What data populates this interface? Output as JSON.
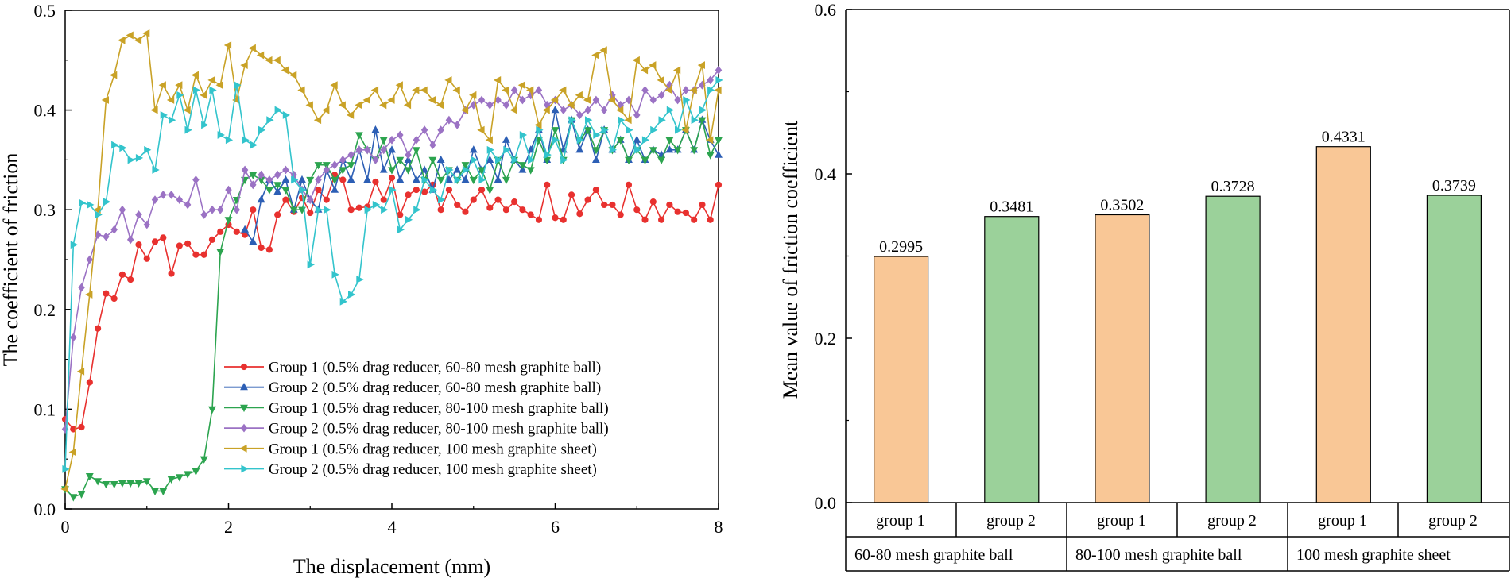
{
  "chart_data": [
    {
      "type": "line",
      "title": "",
      "xlabel": "The displacement (mm)",
      "ylabel": "The coefficient of friction",
      "xlim": [
        0,
        8
      ],
      "ylim": [
        0,
        0.5
      ],
      "xticks": [
        "0",
        "2",
        "4",
        "6",
        "8"
      ],
      "yticks": [
        "0.0",
        "0.1",
        "0.2",
        "0.3",
        "0.4",
        "0.5"
      ],
      "legend_position": "bottom-center",
      "series": [
        {
          "name": "Group 1 (0.5% drag reducer, 60-80 mesh graphite ball)",
          "color": "#e8312f",
          "marker": "circle",
          "x": [
            0,
            0.1,
            0.2,
            0.3,
            0.4,
            0.5,
            0.6,
            0.7,
            0.8,
            0.9,
            1.0,
            1.1,
            1.2,
            1.3,
            1.4,
            1.5,
            1.6,
            1.7,
            1.8,
            1.9,
            2.0,
            2.1,
            2.2,
            2.3,
            2.4,
            2.5,
            2.6,
            2.7,
            2.8,
            2.9,
            3.0,
            3.1,
            3.2,
            3.3,
            3.4,
            3.5,
            3.6,
            3.7,
            3.8,
            3.9,
            4.0,
            4.1,
            4.2,
            4.3,
            4.4,
            4.5,
            4.6,
            4.7,
            4.8,
            4.9,
            5.0,
            5.1,
            5.2,
            5.3,
            5.4,
            5.5,
            5.6,
            5.7,
            5.8,
            5.9,
            6.0,
            6.1,
            6.2,
            6.3,
            6.4,
            6.5,
            6.6,
            6.7,
            6.8,
            6.9,
            7.0,
            7.1,
            7.2,
            7.3,
            7.4,
            7.5,
            7.6,
            7.7,
            7.8,
            7.9,
            8.0
          ],
          "values": [
            0.09,
            0.08,
            0.082,
            0.127,
            0.181,
            0.216,
            0.211,
            0.235,
            0.23,
            0.265,
            0.251,
            0.268,
            0.272,
            0.236,
            0.264,
            0.266,
            0.255,
            0.255,
            0.27,
            0.278,
            0.285,
            0.278,
            0.275,
            0.3,
            0.262,
            0.26,
            0.295,
            0.31,
            0.298,
            0.312,
            0.297,
            0.32,
            0.31,
            0.335,
            0.33,
            0.3,
            0.302,
            0.303,
            0.328,
            0.31,
            0.332,
            0.295,
            0.315,
            0.32,
            0.318,
            0.325,
            0.3,
            0.32,
            0.305,
            0.298,
            0.31,
            0.32,
            0.302,
            0.31,
            0.3,
            0.308,
            0.3,
            0.295,
            0.29,
            0.325,
            0.292,
            0.29,
            0.315,
            0.296,
            0.31,
            0.32,
            0.305,
            0.305,
            0.295,
            0.325,
            0.3,
            0.29,
            0.308,
            0.29,
            0.305,
            0.298,
            0.297,
            0.29,
            0.305,
            0.29,
            0.325
          ]
        },
        {
          "name": "Group 2 (0.5% drag reducer, 60-80 mesh graphite ball)",
          "color": "#2d5fb5",
          "marker": "triangle-up",
          "x": [
            2.2,
            2.3,
            2.4,
            2.5,
            2.6,
            2.7,
            2.8,
            2.9,
            3.0,
            3.1,
            3.2,
            3.3,
            3.4,
            3.5,
            3.6,
            3.7,
            3.8,
            3.9,
            4.0,
            4.1,
            4.2,
            4.3,
            4.4,
            4.5,
            4.6,
            4.7,
            4.8,
            4.9,
            5.0,
            5.1,
            5.2,
            5.3,
            5.4,
            5.5,
            5.6,
            5.7,
            5.8,
            5.9,
            6.0,
            6.1,
            6.2,
            6.3,
            6.4,
            6.5,
            6.6,
            6.7,
            6.8,
            6.9,
            7.0,
            7.1,
            7.2,
            7.3,
            7.4,
            7.5,
            7.6,
            7.7,
            7.8,
            7.9,
            8.0
          ],
          "values": [
            0.28,
            0.268,
            0.31,
            0.33,
            0.318,
            0.33,
            0.3,
            0.33,
            0.31,
            0.3,
            0.34,
            0.32,
            0.35,
            0.33,
            0.36,
            0.33,
            0.38,
            0.34,
            0.36,
            0.33,
            0.35,
            0.33,
            0.34,
            0.32,
            0.35,
            0.33,
            0.34,
            0.33,
            0.36,
            0.34,
            0.35,
            0.33,
            0.37,
            0.35,
            0.34,
            0.36,
            0.38,
            0.35,
            0.4,
            0.36,
            0.39,
            0.36,
            0.38,
            0.35,
            0.38,
            0.36,
            0.37,
            0.35,
            0.37,
            0.35,
            0.36,
            0.355,
            0.36,
            0.36,
            0.38,
            0.36,
            0.39,
            0.37,
            0.355
          ]
        },
        {
          "name": "Group 1 (0.5% drag reducer, 80-100 mesh graphite ball)",
          "color": "#2ca44f",
          "marker": "triangle-down",
          "x": [
            0,
            0.1,
            0.2,
            0.3,
            0.4,
            0.5,
            0.6,
            0.7,
            0.8,
            0.9,
            1.0,
            1.1,
            1.2,
            1.3,
            1.4,
            1.5,
            1.6,
            1.7,
            1.8,
            1.9,
            2.0,
            2.1,
            2.2,
            2.3,
            2.4,
            2.5,
            2.6,
            2.7,
            2.8,
            2.9,
            3.0,
            3.1,
            3.2,
            3.3,
            3.4,
            3.5,
            3.6,
            3.7,
            3.8,
            3.9,
            4.0,
            4.1,
            4.2,
            4.3,
            4.4,
            4.5,
            4.6,
            4.7,
            4.8,
            4.9,
            5.0,
            5.1,
            5.2,
            5.3,
            5.4,
            5.5,
            5.6,
            5.7,
            5.8,
            5.9,
            6.0,
            6.1,
            6.2,
            6.3,
            6.4,
            6.5,
            6.6,
            6.7,
            6.8,
            6.9,
            7.0,
            7.1,
            7.2,
            7.3,
            7.4,
            7.5,
            7.6,
            7.7,
            7.8,
            7.9,
            8.0
          ],
          "values": [
            0.02,
            0.012,
            0.015,
            0.033,
            0.028,
            0.025,
            0.025,
            0.026,
            0.026,
            0.026,
            0.028,
            0.018,
            0.018,
            0.03,
            0.032,
            0.035,
            0.038,
            0.05,
            0.1,
            0.258,
            0.29,
            0.31,
            0.33,
            0.335,
            0.33,
            0.32,
            0.325,
            0.32,
            0.3,
            0.3,
            0.33,
            0.345,
            0.345,
            0.33,
            0.34,
            0.345,
            0.375,
            0.36,
            0.35,
            0.37,
            0.34,
            0.35,
            0.34,
            0.36,
            0.33,
            0.35,
            0.33,
            0.34,
            0.33,
            0.345,
            0.33,
            0.34,
            0.32,
            0.35,
            0.33,
            0.35,
            0.345,
            0.34,
            0.37,
            0.35,
            0.38,
            0.35,
            0.39,
            0.37,
            0.38,
            0.36,
            0.38,
            0.36,
            0.37,
            0.35,
            0.36,
            0.35,
            0.36,
            0.35,
            0.37,
            0.36,
            0.38,
            0.36,
            0.39,
            0.355,
            0.37
          ]
        },
        {
          "name": "Group 2 (0.5% drag reducer, 80-100 mesh graphite ball)",
          "color": "#9b72c4",
          "marker": "diamond",
          "x": [
            0,
            0.1,
            0.2,
            0.3,
            0.4,
            0.5,
            0.6,
            0.7,
            0.8,
            0.9,
            1.0,
            1.1,
            1.2,
            1.3,
            1.4,
            1.5,
            1.6,
            1.7,
            1.8,
            1.9,
            2.0,
            2.1,
            2.2,
            2.3,
            2.4,
            2.5,
            2.6,
            2.7,
            2.8,
            2.9,
            3.0,
            3.1,
            3.2,
            3.3,
            3.4,
            3.5,
            3.6,
            3.7,
            3.8,
            3.9,
            4.0,
            4.1,
            4.2,
            4.3,
            4.4,
            4.5,
            4.6,
            4.7,
            4.8,
            4.9,
            5.0,
            5.1,
            5.2,
            5.3,
            5.4,
            5.5,
            5.6,
            5.7,
            5.8,
            5.9,
            6.0,
            6.1,
            6.2,
            6.3,
            6.4,
            6.5,
            6.6,
            6.7,
            6.8,
            6.9,
            7.0,
            7.1,
            7.2,
            7.3,
            7.4,
            7.5,
            7.6,
            7.7,
            7.8,
            7.9,
            8.0
          ],
          "values": [
            0.08,
            0.172,
            0.222,
            0.25,
            0.275,
            0.273,
            0.28,
            0.3,
            0.27,
            0.295,
            0.285,
            0.31,
            0.315,
            0.315,
            0.31,
            0.305,
            0.33,
            0.295,
            0.3,
            0.3,
            0.32,
            0.3,
            0.34,
            0.325,
            0.335,
            0.33,
            0.335,
            0.34,
            0.335,
            0.32,
            0.31,
            0.33,
            0.34,
            0.345,
            0.35,
            0.355,
            0.36,
            0.36,
            0.35,
            0.36,
            0.37,
            0.375,
            0.355,
            0.37,
            0.38,
            0.365,
            0.38,
            0.39,
            0.385,
            0.4,
            0.405,
            0.41,
            0.405,
            0.41,
            0.405,
            0.42,
            0.41,
            0.415,
            0.42,
            0.405,
            0.41,
            0.4,
            0.405,
            0.395,
            0.4,
            0.41,
            0.4,
            0.415,
            0.405,
            0.41,
            0.395,
            0.42,
            0.41,
            0.415,
            0.425,
            0.41,
            0.42,
            0.42,
            0.425,
            0.43,
            0.44
          ]
        },
        {
          "name": "Group 1 (0.5% drag reducer, 100 mesh graphite sheet)",
          "color": "#c9a227",
          "marker": "triangle-left",
          "x": [
            0,
            0.1,
            0.2,
            0.3,
            0.4,
            0.5,
            0.6,
            0.7,
            0.8,
            0.9,
            1.0,
            1.1,
            1.2,
            1.3,
            1.4,
            1.5,
            1.6,
            1.7,
            1.8,
            1.9,
            2.0,
            2.1,
            2.2,
            2.3,
            2.4,
            2.5,
            2.6,
            2.7,
            2.8,
            2.9,
            3.0,
            3.1,
            3.2,
            3.3,
            3.4,
            3.5,
            3.6,
            3.7,
            3.8,
            3.9,
            4.0,
            4.1,
            4.2,
            4.3,
            4.4,
            4.5,
            4.6,
            4.7,
            4.8,
            4.9,
            5.0,
            5.1,
            5.2,
            5.3,
            5.4,
            5.5,
            5.6,
            5.7,
            5.8,
            5.9,
            6.0,
            6.1,
            6.2,
            6.3,
            6.4,
            6.5,
            6.6,
            6.7,
            6.8,
            6.9,
            7.0,
            7.1,
            7.2,
            7.3,
            7.4,
            7.5,
            7.6,
            7.7,
            7.8,
            7.9,
            8.0
          ],
          "values": [
            0.02,
            0.057,
            0.138,
            0.215,
            0.3,
            0.41,
            0.435,
            0.47,
            0.475,
            0.47,
            0.477,
            0.4,
            0.425,
            0.41,
            0.425,
            0.4,
            0.435,
            0.415,
            0.43,
            0.425,
            0.465,
            0.41,
            0.445,
            0.462,
            0.455,
            0.45,
            0.45,
            0.44,
            0.435,
            0.42,
            0.405,
            0.39,
            0.4,
            0.425,
            0.405,
            0.395,
            0.405,
            0.41,
            0.42,
            0.405,
            0.41,
            0.425,
            0.405,
            0.42,
            0.42,
            0.41,
            0.405,
            0.43,
            0.42,
            0.4,
            0.415,
            0.38,
            0.37,
            0.43,
            0.42,
            0.4,
            0.425,
            0.42,
            0.385,
            0.4,
            0.41,
            0.42,
            0.405,
            0.415,
            0.41,
            0.455,
            0.46,
            0.41,
            0.4,
            0.39,
            0.45,
            0.44,
            0.445,
            0.43,
            0.42,
            0.44,
            0.38,
            0.42,
            0.445,
            0.37,
            0.42
          ]
        },
        {
          "name": "Group 2 (0.5% drag reducer, 100 mesh graphite sheet)",
          "color": "#33c4cc",
          "marker": "triangle-right",
          "x": [
            0,
            0.1,
            0.2,
            0.3,
            0.4,
            0.5,
            0.6,
            0.7,
            0.8,
            0.9,
            1.0,
            1.1,
            1.2,
            1.3,
            1.4,
            1.5,
            1.6,
            1.7,
            1.8,
            1.9,
            2.0,
            2.1,
            2.2,
            2.3,
            2.4,
            2.5,
            2.6,
            2.7,
            2.8,
            2.9,
            3.0,
            3.1,
            3.2,
            3.3,
            3.4,
            3.5,
            3.6,
            3.7,
            3.8,
            3.9,
            4.0,
            4.1,
            4.2,
            4.3,
            4.4,
            4.5,
            4.6,
            4.7,
            4.8,
            4.9,
            5.0,
            5.1,
            5.2,
            5.3,
            5.4,
            5.5,
            5.6,
            5.7,
            5.8,
            5.9,
            6.0,
            6.1,
            6.2,
            6.3,
            6.4,
            6.5,
            6.6,
            6.7,
            6.8,
            6.9,
            7.0,
            7.1,
            7.2,
            7.3,
            7.4,
            7.5,
            7.6,
            7.7,
            7.8,
            7.9,
            8.0
          ],
          "values": [
            0.04,
            0.265,
            0.307,
            0.305,
            0.295,
            0.308,
            0.365,
            0.362,
            0.35,
            0.352,
            0.36,
            0.34,
            0.395,
            0.39,
            0.415,
            0.38,
            0.42,
            0.385,
            0.42,
            0.375,
            0.37,
            0.425,
            0.37,
            0.365,
            0.38,
            0.39,
            0.4,
            0.395,
            0.33,
            0.32,
            0.245,
            0.3,
            0.3,
            0.235,
            0.208,
            0.215,
            0.23,
            0.3,
            0.305,
            0.3,
            0.32,
            0.28,
            0.29,
            0.3,
            0.33,
            0.32,
            0.31,
            0.34,
            0.33,
            0.34,
            0.35,
            0.33,
            0.36,
            0.35,
            0.36,
            0.35,
            0.375,
            0.35,
            0.38,
            0.355,
            0.37,
            0.35,
            0.39,
            0.37,
            0.39,
            0.375,
            0.38,
            0.36,
            0.39,
            0.38,
            0.36,
            0.37,
            0.38,
            0.39,
            0.4,
            0.38,
            0.41,
            0.39,
            0.4,
            0.42,
            0.43
          ]
        }
      ]
    },
    {
      "type": "bar",
      "title": "",
      "xlabel": "",
      "ylabel": "Mean value of friction coefficient",
      "ylim": [
        0,
        0.6
      ],
      "yticks": [
        "0.0",
        "0.2",
        "0.4",
        "0.6"
      ],
      "groups": [
        "60-80 mesh graphite ball",
        "80-100 mesh graphite ball",
        "100 mesh graphite sheet"
      ],
      "categories": [
        "group 1",
        "group 2",
        "group 1",
        "group 2",
        "group 1",
        "group 2"
      ],
      "values": [
        0.2995,
        0.3481,
        0.3502,
        0.3728,
        0.4331,
        0.3739
      ],
      "labels": [
        "0.2995",
        "0.3481",
        "0.3502",
        "0.3728",
        "0.4331",
        "0.3739"
      ],
      "colors": [
        "#f9c796",
        "#9bd19a",
        "#f9c796",
        "#9bd19a",
        "#f9c796",
        "#9bd19a"
      ],
      "bar_edge_color": "#000000"
    }
  ]
}
